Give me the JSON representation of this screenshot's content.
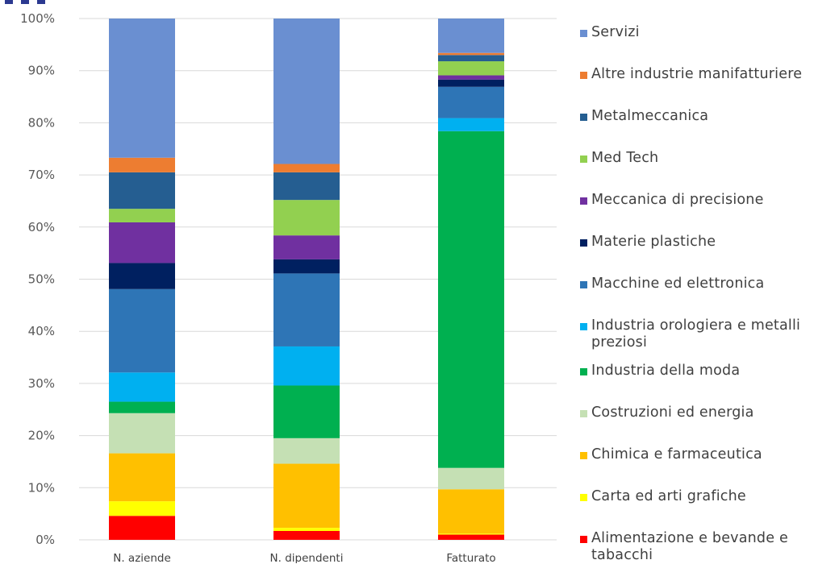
{
  "chart_data": {
    "type": "bar",
    "stacked": true,
    "percent": true,
    "categories": [
      "N. aziende",
      "N. dipendenti",
      "Fatturato"
    ],
    "ylim": [
      0,
      100
    ],
    "yticks": [
      "0%",
      "10%",
      "20%",
      "30%",
      "40%",
      "50%",
      "60%",
      "70%",
      "80%",
      "90%",
      "100%"
    ],
    "grid": true,
    "legend_position": "right",
    "series": [
      {
        "name": "Alimentazione e bevande e tabacchi",
        "color": "#ff0000",
        "values": [
          4.6,
          1.7,
          1.0
        ]
      },
      {
        "name": "Carta ed arti grafiche",
        "color": "#ffff00",
        "values": [
          2.8,
          0.6,
          0.2
        ]
      },
      {
        "name": "Chimica e farmaceutica",
        "color": "#ffc000",
        "values": [
          9.2,
          12.3,
          8.5
        ]
      },
      {
        "name": "Costruzioni ed energia",
        "color": "#c5e0b4",
        "values": [
          7.7,
          4.9,
          4.1
        ]
      },
      {
        "name": "Industria della moda",
        "color": "#00b050",
        "values": [
          2.2,
          10.1,
          64.6
        ]
      },
      {
        "name": "Industria orologiera e metalli preziosi",
        "color": "#00b0f0",
        "values": [
          5.6,
          7.5,
          2.5
        ]
      },
      {
        "name": "Macchine ed elettronica",
        "color": "#2e75b6",
        "values": [
          16.0,
          14.0,
          6.0
        ]
      },
      {
        "name": "Materie plastiche",
        "color": "#002060",
        "values": [
          5.0,
          2.7,
          1.4
        ]
      },
      {
        "name": "Meccanica di precisione",
        "color": "#7030a0",
        "values": [
          7.8,
          4.6,
          0.8
        ]
      },
      {
        "name": "Med Tech",
        "color": "#92d050",
        "values": [
          2.6,
          6.8,
          2.7
        ]
      },
      {
        "name": "Metalmeccanica",
        "color": "#255e91",
        "values": [
          7.0,
          5.3,
          1.2
        ]
      },
      {
        "name": "Altre industrie manifatturiere",
        "color": "#ed7d31",
        "values": [
          2.8,
          1.6,
          0.4
        ]
      },
      {
        "name": "Servizi",
        "color": "#6a8fd1",
        "values": [
          26.7,
          27.9,
          6.6
        ]
      }
    ]
  },
  "legend": [
    {
      "label": "Servizi",
      "color": "#6a8fd1"
    },
    {
      "label": "Altre industrie manifatturiere",
      "color": "#ed7d31"
    },
    {
      "label": "Metalmeccanica",
      "color": "#255e91"
    },
    {
      "label": "Med Tech",
      "color": "#92d050"
    },
    {
      "label": "Meccanica di precisione",
      "color": "#7030a0"
    },
    {
      "label": "Materie plastiche",
      "color": "#002060"
    },
    {
      "label": "Macchine ed elettronica",
      "color": "#2e75b6"
    },
    {
      "label": "Industria orologiera e metalli preziosi",
      "color": "#00b0f0"
    },
    {
      "label": "Industria della moda",
      "color": "#00b050"
    },
    {
      "label": "Costruzioni ed energia",
      "color": "#c5e0b4"
    },
    {
      "label": "Chimica e farmaceutica",
      "color": "#ffc000"
    },
    {
      "label": "Carta ed arti grafiche",
      "color": "#ffff00"
    },
    {
      "label": "Alimentazione e bevande e tabacchi",
      "color": "#ff0000"
    }
  ],
  "title_color": "#2b3990"
}
